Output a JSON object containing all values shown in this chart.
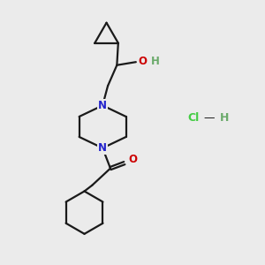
{
  "background_color": "#ebebeb",
  "bond_color": "#1a1a1a",
  "nitrogen_color": "#2222cc",
  "oxygen_color": "#cc0000",
  "hydrogen_color": "#6aaa6a",
  "chlorine_color": "#44cc44",
  "line_width": 1.6,
  "fig_size": [
    3.0,
    3.0
  ],
  "dpi": 100,
  "xlim": [
    0,
    10
  ],
  "ylim": [
    0,
    10
  ]
}
